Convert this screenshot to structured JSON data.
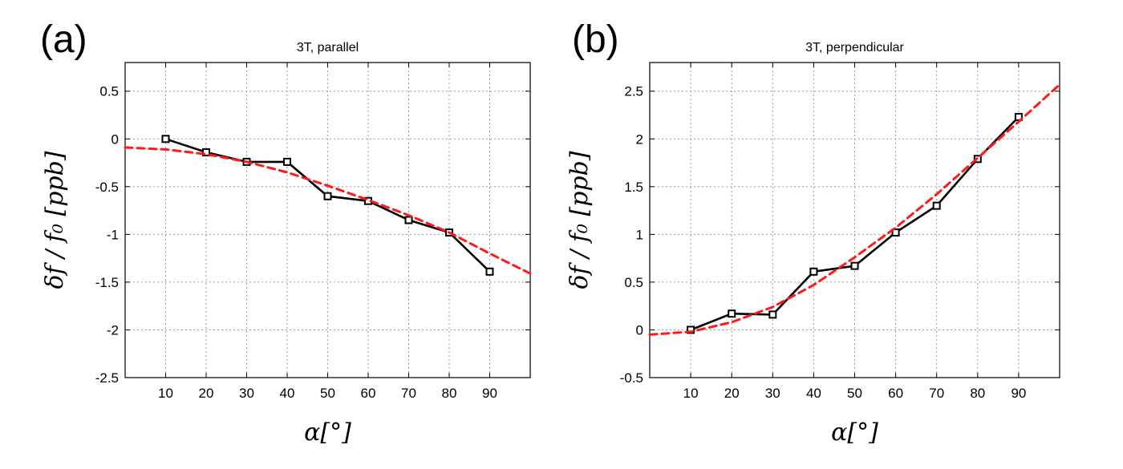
{
  "chart_data": [
    {
      "panel_label": "(a)",
      "type": "line",
      "title": "3T, parallel",
      "xlabel": "α[°]",
      "ylabel": "δf / f₀ [ppb]",
      "xlim": [
        0,
        100
      ],
      "ylim": [
        -2.5,
        0.8
      ],
      "xticks": [
        10,
        20,
        30,
        40,
        50,
        60,
        70,
        80,
        90
      ],
      "yticks": [
        -2.5,
        -2,
        -1.5,
        -1,
        -0.5,
        0,
        0.5
      ],
      "ytick_labels": [
        "-2.5",
        "-2",
        "-1.5",
        "-1",
        "-0.5",
        "0",
        "0.5"
      ],
      "grid": true,
      "series": [
        {
          "style": "solid-square-markers",
          "color": "#000000",
          "x": [
            10,
            20,
            30,
            40,
            50,
            60,
            70,
            80,
            90
          ],
          "y": [
            0.0,
            -0.14,
            -0.24,
            -0.24,
            -0.6,
            -0.65,
            -0.85,
            -0.98,
            -1.39
          ]
        },
        {
          "style": "dashed",
          "color": "#ff1a1a",
          "x": [
            0,
            10,
            20,
            30,
            40,
            50,
            60,
            70,
            80,
            90,
            100
          ],
          "y": [
            -0.09,
            -0.11,
            -0.16,
            -0.24,
            -0.35,
            -0.49,
            -0.64,
            -0.8,
            -0.98,
            -1.2,
            -1.41
          ]
        }
      ]
    },
    {
      "panel_label": "(b)",
      "type": "line",
      "title": "3T, perpendicular",
      "xlabel": "α[°]",
      "ylabel": "δf / f₀ [ppb]",
      "xlim": [
        0,
        100
      ],
      "ylim": [
        -0.5,
        2.8
      ],
      "xticks": [
        10,
        20,
        30,
        40,
        50,
        60,
        70,
        80,
        90
      ],
      "yticks": [
        -0.5,
        0,
        0.5,
        1,
        1.5,
        2,
        2.5
      ],
      "ytick_labels": [
        "-0.5",
        "0",
        "0.5",
        "1",
        "1.5",
        "2",
        "2.5"
      ],
      "grid": true,
      "series": [
        {
          "style": "solid-square-markers",
          "color": "#000000",
          "x": [
            10,
            20,
            30,
            40,
            50,
            60,
            70,
            80,
            90
          ],
          "y": [
            0.0,
            0.17,
            0.16,
            0.61,
            0.67,
            1.02,
            1.3,
            1.79,
            2.23
          ]
        },
        {
          "style": "dashed",
          "color": "#ff1a1a",
          "x": [
            0,
            10,
            20,
            30,
            40,
            50,
            60,
            70,
            80,
            90,
            100
          ],
          "y": [
            -0.05,
            -0.02,
            0.08,
            0.24,
            0.47,
            0.76,
            1.07,
            1.42,
            1.8,
            2.18,
            2.57
          ]
        }
      ]
    }
  ]
}
